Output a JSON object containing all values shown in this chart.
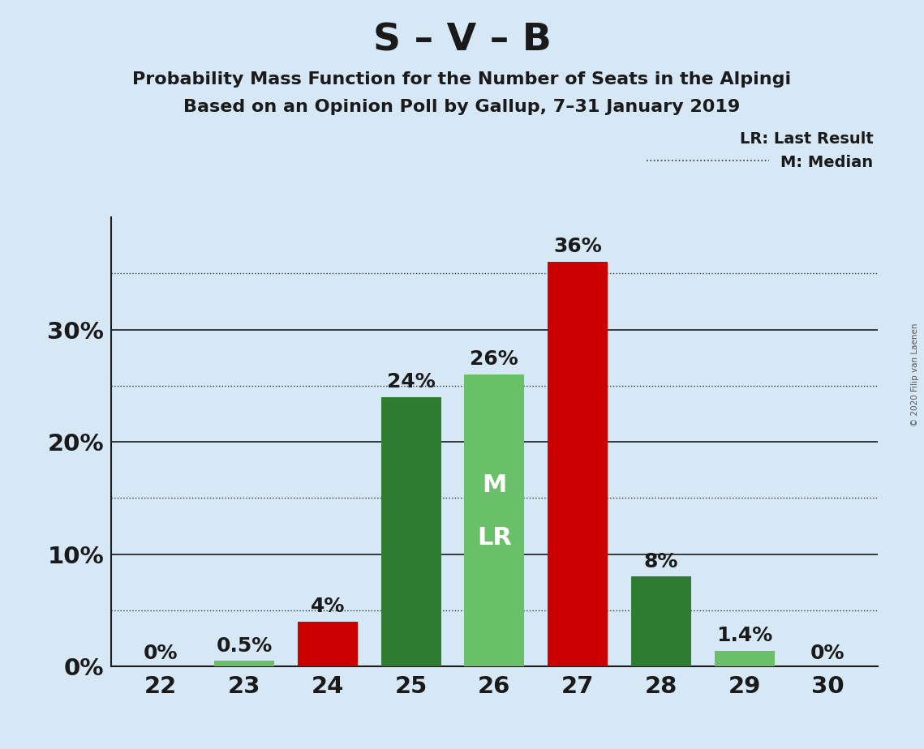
{
  "title": "S – V – B",
  "subtitle1": "Probability Mass Function for the Number of Seats in the Alpingi",
  "subtitle2": "Based on an Opinion Poll by Gallup, 7–31 January 2019",
  "copyright": "© 2020 Filip van Laenen",
  "seats": [
    22,
    23,
    24,
    25,
    26,
    27,
    28,
    29,
    30
  ],
  "values": [
    0.0,
    0.5,
    4.0,
    24.0,
    26.0,
    36.0,
    8.0,
    1.4,
    0.0
  ],
  "bar_colors": [
    "#6abf69",
    "#6abf69",
    "#cc0000",
    "#2e7d32",
    "#6abf69",
    "#cc0000",
    "#2e7d32",
    "#6abf69",
    "#6abf69"
  ],
  "labels": [
    "0%",
    "0.5%",
    "4%",
    "24%",
    "26%",
    "36%",
    "8%",
    "1.4%",
    "0%"
  ],
  "median_seat": 26,
  "lr_seat": 26,
  "background_color": "#d6e8f5",
  "bar_width": 0.72,
  "ylim": [
    0,
    40
  ],
  "solid_lines": [
    10,
    20,
    30
  ],
  "dotted_lines": [
    5,
    15,
    25,
    35
  ],
  "ytick_positions": [
    0,
    10,
    20,
    30
  ],
  "ytick_labels": [
    "0%",
    "10%",
    "20%",
    "30%"
  ],
  "legend_lr": "LR: Last Result",
  "legend_m": "M: Median",
  "title_fontsize": 34,
  "subtitle_fontsize": 16,
  "label_fontsize": 18,
  "axis_fontsize": 21,
  "inner_label_fontsize": 22
}
